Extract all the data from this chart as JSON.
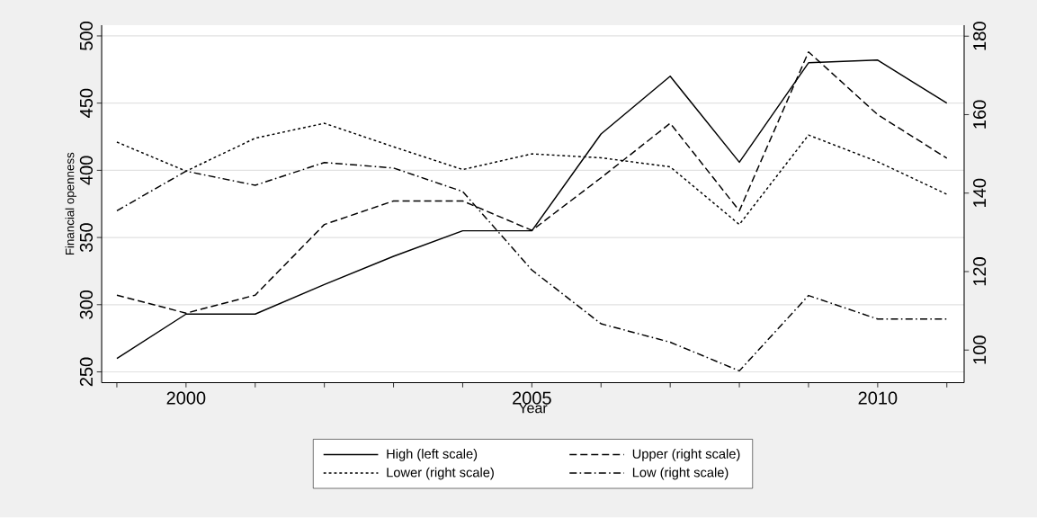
{
  "chart_data": {
    "type": "line",
    "xlabel": "Year",
    "ylabel": "Financial openness",
    "x": [
      1999,
      2000,
      2001,
      2002,
      2003,
      2004,
      2005,
      2006,
      2007,
      2008,
      2009,
      2010,
      2011
    ],
    "xlim": [
      1998.78,
      2011.25
    ],
    "xticks": [
      {
        "value": 1999,
        "label": null
      },
      2000,
      {
        "value": 2001,
        "label": null
      },
      {
        "value": 2002,
        "label": null
      },
      {
        "value": 2003,
        "label": null
      },
      {
        "value": 2004,
        "label": null
      },
      2005,
      {
        "value": 2006,
        "label": null
      },
      {
        "value": 2007,
        "label": null
      },
      {
        "value": 2008,
        "label": null
      },
      {
        "value": 2009,
        "label": null
      },
      2010,
      {
        "value": 2011,
        "label": null
      }
    ],
    "ylim": [
      242,
      508
    ],
    "yticks": [
      250,
      300,
      350,
      400,
      450,
      500
    ],
    "y2lim": [
      91.7,
      182.8
    ],
    "y2ticks": [
      100,
      120,
      140,
      160,
      180
    ],
    "grid": "y",
    "legend": "bottom",
    "marker": "none",
    "series": [
      {
        "name": "High (left scale)",
        "color": "#000000",
        "line_style": "solid",
        "values": [
          260,
          293,
          293,
          315,
          336,
          355,
          355,
          427,
          470,
          406,
          480,
          482,
          450
        ]
      },
      {
        "name": "Upper (right scale)",
        "color": "#000000",
        "line_style": "dashed",
        "axis": "y2",
        "values": [
          114,
          109.4,
          114,
          132,
          138,
          138,
          130.5,
          143.9,
          157.8,
          135.5,
          176,
          160,
          148.9
        ]
      },
      {
        "name": "Lower (right scale)",
        "color": "#000000",
        "line_style": "dotted",
        "axis": "y2",
        "values": [
          153,
          145.6,
          154,
          157.8,
          151.8,
          146,
          150,
          149,
          146.7,
          132,
          154.8,
          148,
          139.7
        ]
      },
      {
        "name": "Low (right scale)",
        "color": "#000000",
        "line_style": "dashdot",
        "axis": "y2",
        "values": [
          135.5,
          145.6,
          142,
          147.8,
          146.4,
          140.4,
          120.4,
          106.7,
          102,
          94.7,
          113.9,
          107.9,
          107.9
        ]
      }
    ]
  }
}
